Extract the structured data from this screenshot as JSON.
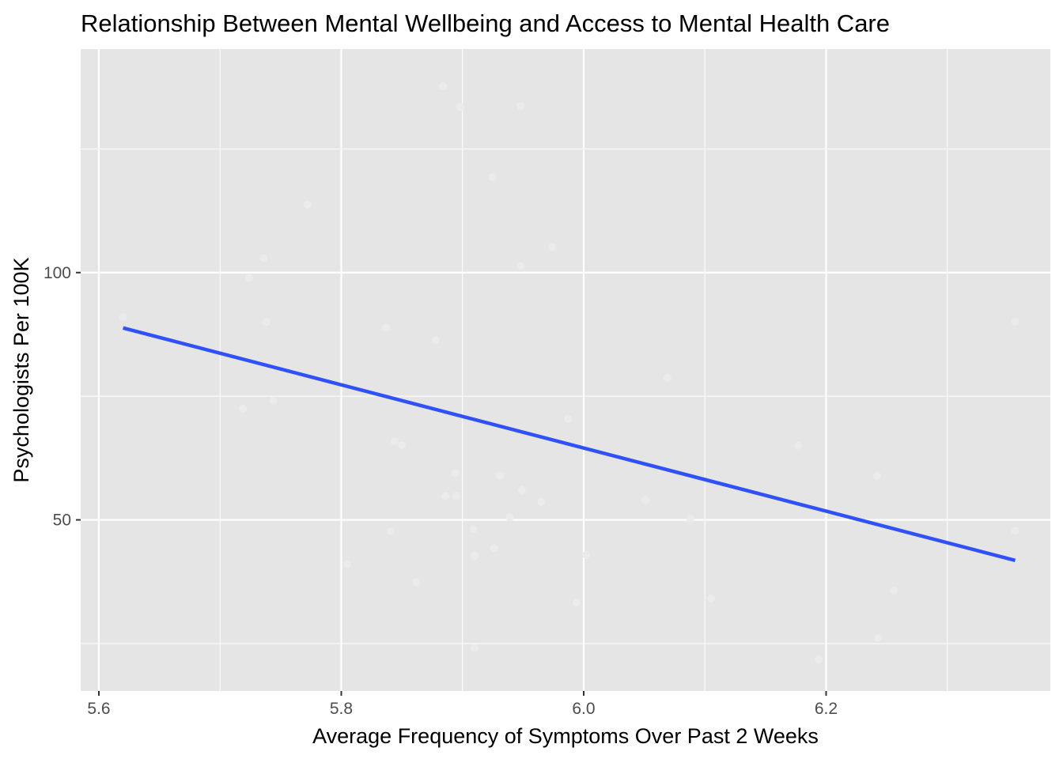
{
  "chart_data": {
    "type": "scatter",
    "title": "Relationship Between Mental Wellbeing and Access to Mental Health Care",
    "xlabel": "Average Frequency of Symptoms Over Past 2 Weeks",
    "ylabel": "Psychologists Per 100K",
    "xlim": [
      5.585,
      6.385
    ],
    "ylim": [
      15.4,
      145.2
    ],
    "x_ticks": [
      {
        "value": 5.6,
        "label": "5.6"
      },
      {
        "value": 5.8,
        "label": "5.8"
      },
      {
        "value": 6.0,
        "label": "6.0"
      },
      {
        "value": 6.2,
        "label": "6.2"
      }
    ],
    "y_ticks": [
      {
        "value": 50,
        "label": "50"
      },
      {
        "value": 100,
        "label": "100"
      }
    ],
    "x_minor_gridlines": [
      5.7,
      5.9,
      6.1,
      6.3
    ],
    "y_minor_gridlines": [
      25,
      75,
      125
    ],
    "grid": true,
    "background": "#e5e5e5",
    "gridline_color": "#ffffff",
    "points": [
      {
        "x": 5.62,
        "y": 91.0
      },
      {
        "x": 5.719,
        "y": 72.5
      },
      {
        "x": 5.724,
        "y": 98.9
      },
      {
        "x": 5.736,
        "y": 102.9
      },
      {
        "x": 5.738,
        "y": 90.0
      },
      {
        "x": 5.744,
        "y": 74.1
      },
      {
        "x": 5.772,
        "y": 113.7
      },
      {
        "x": 5.805,
        "y": 41.1
      },
      {
        "x": 5.837,
        "y": 88.8
      },
      {
        "x": 5.841,
        "y": 47.7
      },
      {
        "x": 5.844,
        "y": 65.9
      },
      {
        "x": 5.85,
        "y": 65.1
      },
      {
        "x": 5.862,
        "y": 37.4
      },
      {
        "x": 5.878,
        "y": 86.3
      },
      {
        "x": 5.884,
        "y": 137.7
      },
      {
        "x": 5.886,
        "y": 54.8
      },
      {
        "x": 5.894,
        "y": 59.4
      },
      {
        "x": 5.895,
        "y": 54.8
      },
      {
        "x": 5.898,
        "y": 133.5
      },
      {
        "x": 5.909,
        "y": 48.2
      },
      {
        "x": 5.91,
        "y": 42.7
      },
      {
        "x": 5.91,
        "y": 24.1
      },
      {
        "x": 5.925,
        "y": 119.3
      },
      {
        "x": 5.926,
        "y": 44.3
      },
      {
        "x": 5.931,
        "y": 59.0
      },
      {
        "x": 5.939,
        "y": 50.5
      },
      {
        "x": 5.948,
        "y": 101.3
      },
      {
        "x": 5.948,
        "y": 133.7
      },
      {
        "x": 5.949,
        "y": 56.0
      },
      {
        "x": 5.965,
        "y": 53.6
      },
      {
        "x": 5.974,
        "y": 105.2
      },
      {
        "x": 5.987,
        "y": 70.4
      },
      {
        "x": 5.994,
        "y": 33.3
      },
      {
        "x": 6.002,
        "y": 42.9
      },
      {
        "x": 6.051,
        "y": 54.0
      },
      {
        "x": 6.069,
        "y": 78.7
      },
      {
        "x": 6.088,
        "y": 50.2
      },
      {
        "x": 6.105,
        "y": 34.1
      },
      {
        "x": 6.177,
        "y": 65.0
      },
      {
        "x": 6.194,
        "y": 21.8
      },
      {
        "x": 6.242,
        "y": 58.9
      },
      {
        "x": 6.243,
        "y": 26.1
      },
      {
        "x": 6.256,
        "y": 35.7
      },
      {
        "x": 6.356,
        "y": 90.1
      },
      {
        "x": 6.356,
        "y": 47.8
      }
    ],
    "point_color": "#ebebeb",
    "trendline": {
      "type": "linear",
      "x": [
        5.62,
        6.356
      ],
      "y": [
        88.8,
        41.8
      ],
      "color": "#3050f8"
    }
  }
}
